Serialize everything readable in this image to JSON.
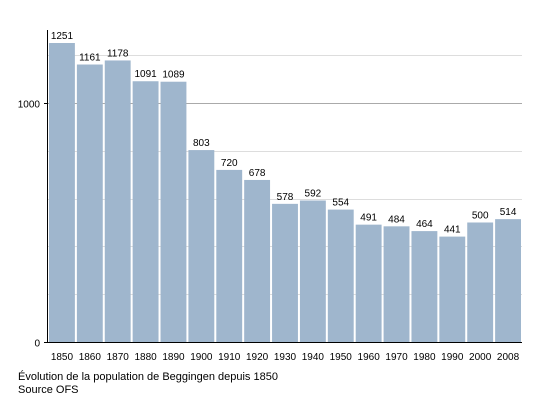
{
  "chart_data": {
    "type": "bar",
    "categories": [
      "1850",
      "1860",
      "1870",
      "1880",
      "1890",
      "1900",
      "1910",
      "1920",
      "1930",
      "1940",
      "1950",
      "1960",
      "1970",
      "1980",
      "1990",
      "2000",
      "2008"
    ],
    "values": [
      1251,
      1161,
      1178,
      1091,
      1089,
      803,
      720,
      678,
      578,
      592,
      554,
      491,
      484,
      464,
      441,
      500,
      514
    ],
    "ylim": [
      0,
      1251
    ],
    "yticks": [
      0,
      1000
    ],
    "grid": true,
    "colors": {
      "bar": "#9fb6cd",
      "grid_major": "#aaaaaa",
      "grid_minor": "#dddddd"
    }
  },
  "caption": {
    "line1": "Évolution de la population de Beggingen depuis 1850",
    "line2": "Source OFS"
  }
}
